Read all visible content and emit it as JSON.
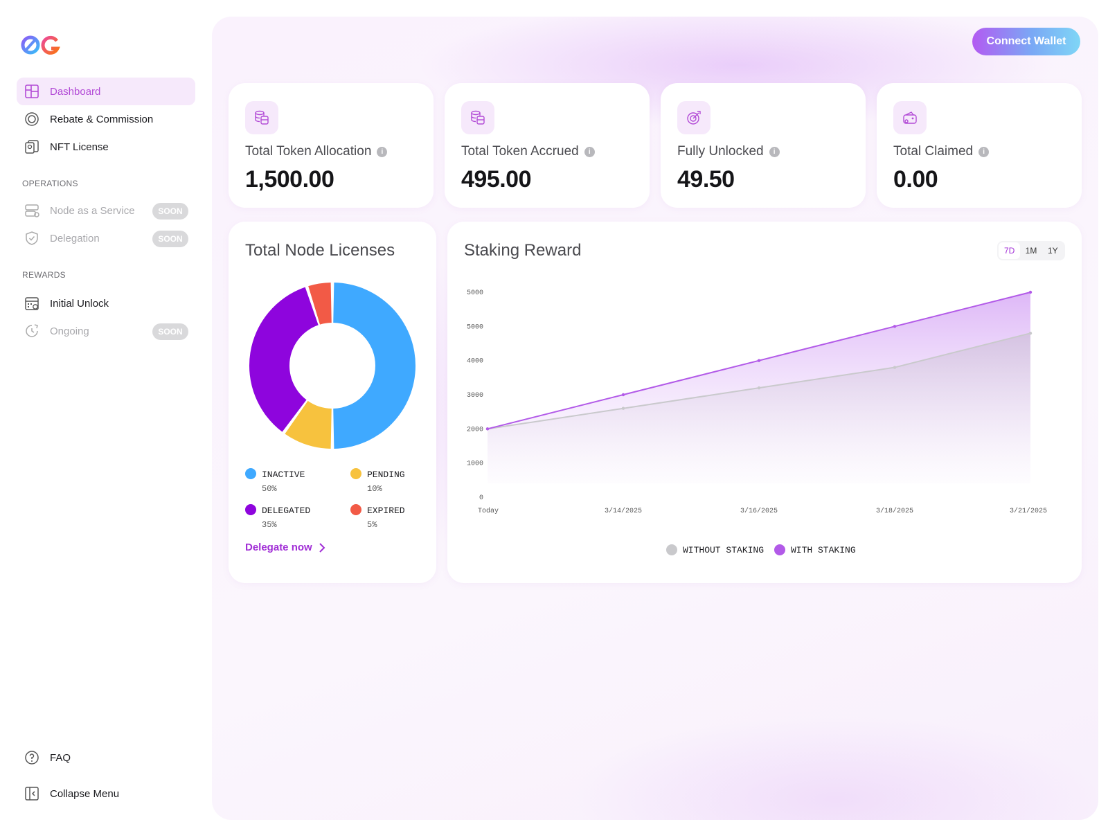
{
  "sidebar": {
    "items": [
      {
        "label": "Dashboard",
        "icon": "dashboard-icon"
      },
      {
        "label": "Rebate & Commission",
        "icon": "rebate-icon"
      },
      {
        "label": "NFT License",
        "icon": "license-icon"
      }
    ],
    "operations_label": "OPERATIONS",
    "operations": [
      {
        "label": "Node as a Service",
        "badge": "SOON",
        "icon": "node-service-icon"
      },
      {
        "label": "Delegation",
        "badge": "SOON",
        "icon": "shield-icon"
      }
    ],
    "rewards_label": "REWARDS",
    "rewards": [
      {
        "label": "Initial Unlock",
        "icon": "calendar-icon"
      },
      {
        "label": "Ongoing",
        "badge": "SOON",
        "icon": "clock-icon"
      }
    ],
    "faq": "FAQ",
    "collapse": "Collapse Menu"
  },
  "header": {
    "connect_wallet": "Connect Wallet"
  },
  "stats": [
    {
      "label": "Total Token Allocation",
      "value": "1,500.00",
      "icon": "coins-icon"
    },
    {
      "label": "Total Token Accrued",
      "value": "495.00",
      "icon": "coins-icon"
    },
    {
      "label": "Fully Unlocked",
      "value": "49.50",
      "icon": "target-icon"
    },
    {
      "label": "Total Claimed",
      "value": "0.00",
      "icon": "wallet-icon"
    }
  ],
  "licenses": {
    "title": "Total Node Licenses",
    "delegate_link": "Delegate now"
  },
  "staking": {
    "title": "Staking Reward",
    "ranges": [
      "7D",
      "1M",
      "1Y"
    ],
    "selected_range": "7D"
  },
  "colors": {
    "inactive": "#3fa9ff",
    "pending": "#f7c23e",
    "delegated": "#8e05dd",
    "expired": "#f25a46",
    "with_staking": "#b25ae8",
    "without_staking": "#c9c9cc",
    "accent": "#a12ed6"
  },
  "chart_data": [
    {
      "type": "pie",
      "title": "Total Node Licenses",
      "categories": [
        "INACTIVE",
        "PENDING",
        "DELEGATED",
        "EXPIRED"
      ],
      "values": [
        50,
        10,
        35,
        5
      ],
      "value_labels": [
        "50%",
        "10%",
        "35%",
        "5%"
      ],
      "legend": "bottom"
    },
    {
      "type": "area",
      "title": "Staking Reward",
      "categories": [
        "Today",
        "3/14/2025",
        "3/16/2025",
        "3/18/2025",
        "3/21/2025"
      ],
      "y_tick_labels": [
        "0",
        "1000",
        "2000",
        "3000",
        "4000",
        "5000",
        "5000"
      ],
      "ylim": [
        0,
        6000
      ],
      "series": [
        {
          "name": "WITHOUT STAKING",
          "values": [
            2000,
            2600,
            3200,
            3800,
            4800
          ]
        },
        {
          "name": "WITH STAKING",
          "values": [
            2000,
            3000,
            4000,
            5000,
            6000
          ]
        }
      ],
      "legend": "bottom"
    }
  ]
}
